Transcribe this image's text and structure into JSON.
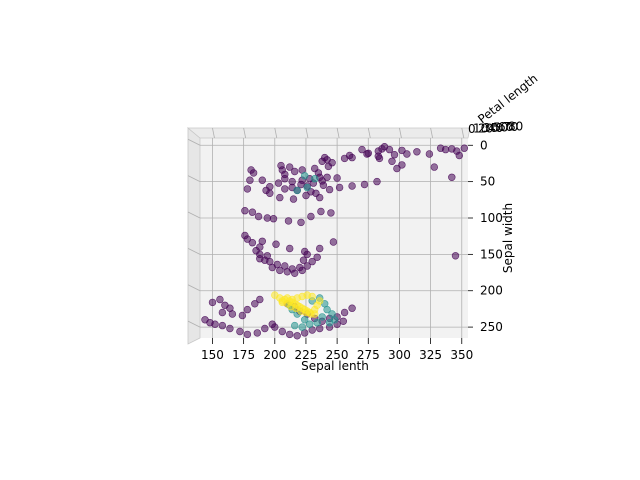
{
  "chart_data": {
    "type": "scatter",
    "projection": "3d",
    "title": "",
    "xlabel": "Sepal lenth",
    "ylabel": "Sepal width",
    "zlabel": "Petal length",
    "xlim": [
      140,
      355
    ],
    "ylim": [
      -10,
      265
    ],
    "x_ticks": [
      150,
      175,
      200,
      225,
      250,
      275,
      300,
      325,
      350
    ],
    "y_ticks": [
      0,
      50,
      100,
      150,
      200,
      250
    ],
    "z_ticks": [
      "0",
      "10",
      "20",
      "30",
      "40",
      "50",
      "60",
      "70",
      "80"
    ],
    "grid": true,
    "colormap": "viridis",
    "colors": {
      "class_0": "#440154",
      "class_1": "#21918c",
      "class_2": "#fde725"
    },
    "point_alpha": 0.55,
    "series": [
      {
        "values": [
          [
            275,
            11
          ],
          [
            283,
            8
          ],
          [
            292,
            6
          ],
          [
            270,
            6
          ],
          [
            283,
            15
          ],
          [
            296,
            13
          ],
          [
            302,
            7
          ],
          [
            286,
            5
          ],
          [
            260,
            14
          ],
          [
            306,
            12
          ],
          [
            314,
            9
          ],
          [
            288,
            2
          ],
          [
            240,
            17
          ],
          [
            242,
            20
          ],
          [
            238,
            22
          ],
          [
            246,
            24
          ],
          [
            256,
            18
          ],
          [
            262,
            17
          ],
          [
            274,
            12
          ],
          [
            284,
            18
          ],
          [
            294,
            22
          ],
          [
            302,
            27
          ],
          [
            298,
            32
          ],
          [
            205,
            28
          ],
          [
            212,
            30
          ],
          [
            206,
            34
          ],
          [
            208,
            40
          ],
          [
            216,
            36
          ],
          [
            222,
            34
          ],
          [
            232,
            32
          ],
          [
            243,
            29
          ],
          [
            235,
            38
          ],
          [
            236,
            44
          ],
          [
            228,
            46
          ],
          [
            208,
            46
          ],
          [
            203,
            52
          ],
          [
            214,
            50
          ],
          [
            222,
            48
          ],
          [
            231,
            52
          ],
          [
            239,
            55
          ],
          [
            244,
            61
          ],
          [
            252,
            58
          ],
          [
            262,
            56
          ],
          [
            272,
            54
          ],
          [
            282,
            50
          ],
          [
            196,
            57
          ],
          [
            208,
            60
          ],
          [
            218,
            62
          ],
          [
            229,
            64
          ],
          [
            233,
            66
          ],
          [
            221,
            54
          ],
          [
            214,
            58
          ],
          [
            226,
            56
          ],
          [
            238,
            49
          ],
          [
            242,
            44
          ],
          [
            250,
            45
          ],
          [
            181,
            34
          ],
          [
            183,
            38
          ],
          [
            180,
            48
          ],
          [
            178,
            60
          ],
          [
            190,
            48
          ],
          [
            193,
            62
          ],
          [
            196,
            66
          ],
          [
            204,
            72
          ],
          [
            215,
            74
          ],
          [
            225,
            69
          ],
          [
            236,
            72
          ],
          [
            176,
            90
          ],
          [
            182,
            92
          ],
          [
            187,
            98
          ],
          [
            194,
            100
          ],
          [
            199,
            101
          ],
          [
            211,
            104
          ],
          [
            221,
            106
          ],
          [
            229,
            98
          ],
          [
            237,
            91
          ],
          [
            245,
            93
          ],
          [
            176,
            124
          ],
          [
            178,
            129
          ],
          [
            182,
            134
          ],
          [
            188,
            140
          ],
          [
            190,
            132
          ],
          [
            201,
            136
          ],
          [
            212,
            142
          ],
          [
            224,
            146
          ],
          [
            236,
            142
          ],
          [
            247,
            133
          ],
          [
            185,
            145
          ],
          [
            188,
            150
          ],
          [
            194,
            152
          ],
          [
            196,
            160
          ],
          [
            202,
            164
          ],
          [
            208,
            166
          ],
          [
            214,
            170
          ],
          [
            220,
            168
          ],
          [
            223,
            158
          ],
          [
            226,
            150
          ],
          [
            188,
            156
          ],
          [
            192,
            158
          ],
          [
            198,
            168
          ],
          [
            204,
            172
          ],
          [
            210,
            174
          ],
          [
            216,
            176
          ],
          [
            222,
            172
          ],
          [
            226,
            166
          ],
          [
            230,
            160
          ],
          [
            234,
            154
          ],
          [
            150,
            216
          ],
          [
            156,
            212
          ],
          [
            160,
            220
          ],
          [
            164,
            224
          ],
          [
            158,
            230
          ],
          [
            166,
            232
          ],
          [
            174,
            234
          ],
          [
            178,
            226
          ],
          [
            184,
            218
          ],
          [
            188,
            212
          ],
          [
            144,
            240
          ],
          [
            148,
            244
          ],
          [
            152,
            246
          ],
          [
            158,
            248
          ],
          [
            164,
            252
          ],
          [
            172,
            256
          ],
          [
            178,
            260
          ],
          [
            186,
            258
          ],
          [
            192,
            252
          ],
          [
            198,
            246
          ],
          [
            210,
            218
          ],
          [
            216,
            222
          ],
          [
            220,
            228
          ],
          [
            226,
            232
          ],
          [
            232,
            238
          ],
          [
            238,
            242
          ],
          [
            244,
            238
          ],
          [
            250,
            236
          ],
          [
            256,
            230
          ],
          [
            262,
            224
          ],
          [
            200,
            250
          ],
          [
            206,
            256
          ],
          [
            212,
            260
          ],
          [
            218,
            262
          ],
          [
            224,
            258
          ],
          [
            230,
            254
          ],
          [
            236,
            252
          ],
          [
            244,
            250
          ],
          [
            250,
            246
          ],
          [
            255,
            242
          ],
          [
            333,
            4
          ],
          [
            337,
            6
          ],
          [
            342,
            5
          ],
          [
            346,
            8
          ],
          [
            352,
            4
          ],
          [
            348,
            14
          ],
          [
            324,
            12
          ],
          [
            328,
            30
          ],
          [
            342,
            44
          ],
          [
            345,
            152
          ]
        ]
      },
      {
        "values": [
          [
            224,
            42
          ],
          [
            226,
            58
          ],
          [
            232,
            46
          ],
          [
            218,
            62
          ],
          [
            236,
            210
          ],
          [
            240,
            218
          ],
          [
            242,
            226
          ],
          [
            246,
            232
          ],
          [
            238,
            236
          ],
          [
            234,
            244
          ],
          [
            228,
            246
          ],
          [
            224,
            240
          ],
          [
            218,
            232
          ],
          [
            214,
            226
          ],
          [
            212,
            220
          ],
          [
            244,
            244
          ],
          [
            248,
            240
          ],
          [
            222,
            250
          ],
          [
            216,
            248
          ],
          [
            230,
            214
          ]
        ]
      },
      {
        "values": [
          [
            200,
            206
          ],
          [
            204,
            210
          ],
          [
            208,
            212
          ],
          [
            212,
            214
          ],
          [
            214,
            216
          ],
          [
            216,
            218
          ],
          [
            218,
            220
          ],
          [
            220,
            222
          ],
          [
            222,
            224
          ],
          [
            224,
            226
          ],
          [
            226,
            228
          ],
          [
            228,
            230
          ],
          [
            232,
            232
          ],
          [
            210,
            218
          ],
          [
            206,
            216
          ],
          [
            213,
            222
          ],
          [
            217,
            224
          ],
          [
            221,
            228
          ],
          [
            225,
            230
          ],
          [
            229,
            232
          ],
          [
            232,
            226
          ],
          [
            234,
            220
          ],
          [
            236,
            214
          ],
          [
            230,
            208
          ],
          [
            226,
            206
          ],
          [
            222,
            208
          ],
          [
            218,
            210
          ],
          [
            214,
            212
          ],
          [
            210,
            210
          ],
          [
            206,
            214
          ]
        ]
      }
    ]
  }
}
